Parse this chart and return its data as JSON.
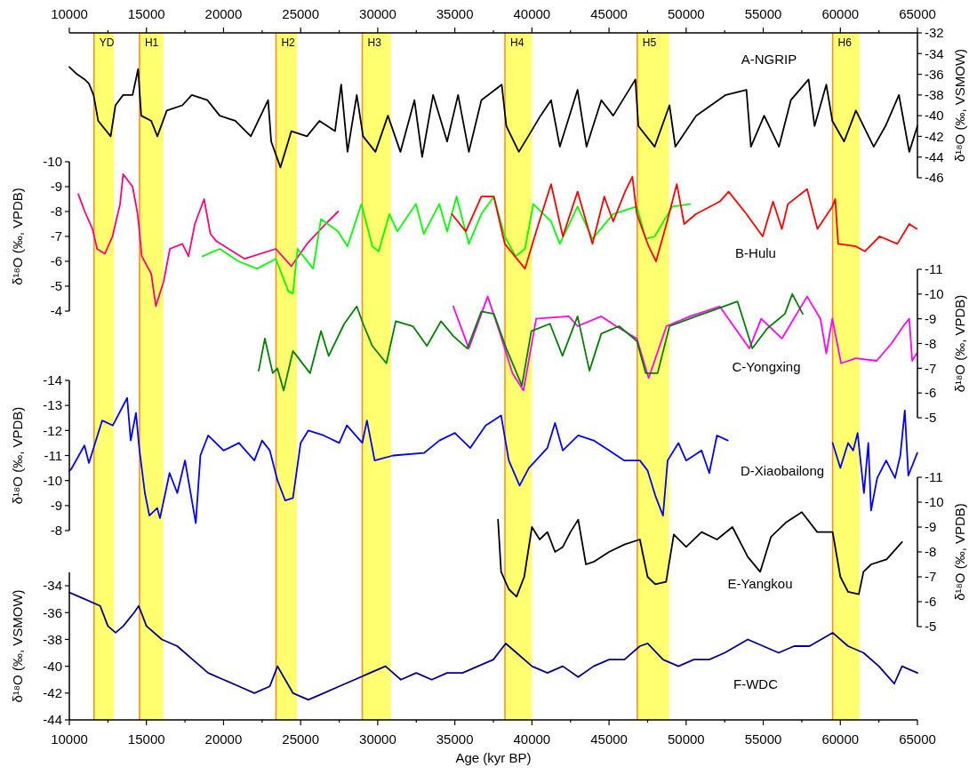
{
  "chart_data": [
    {
      "type": "line",
      "xlim": [
        10000,
        65000
      ],
      "xticks": [
        10000,
        {
          "value": 12500,
          "label": null
        },
        15000,
        {
          "value": 17500,
          "label": null
        },
        20000,
        {
          "value": 22500,
          "label": null
        },
        25000,
        {
          "value": 27500,
          "label": null
        },
        30000,
        {
          "value": 32500,
          "label": null
        },
        35000,
        {
          "value": 37500,
          "label": null
        },
        40000,
        {
          "value": 42500,
          "label": null
        },
        45000,
        {
          "value": 47500,
          "label": null
        },
        50000,
        {
          "value": 52500,
          "label": null
        },
        55000,
        {
          "value": 57500,
          "label": null
        },
        60000,
        {
          "value": 62500,
          "label": null
        },
        65000
      ],
      "ylim": [
        -46,
        -32
      ],
      "yticks": [
        -32,
        -34,
        -36,
        -38,
        -40,
        -42,
        -44,
        -46
      ],
      "ylabel": "δ¹⁸O (‰, VSMOW)",
      "annotations": [
        "A-NGRIP"
      ],
      "ref_lines": [
        {
          "axis": "x",
          "value": 11600,
          "color": "#ff8c1a"
        },
        {
          "axis": "x",
          "value": 14550,
          "color": "#ff8c1a"
        },
        {
          "axis": "x",
          "value": 23400,
          "color": "#ff8c1a"
        },
        {
          "axis": "x",
          "value": 29000,
          "color": "#ff8c1a"
        },
        {
          "axis": "x",
          "value": 38250,
          "color": "#ff8c1a"
        },
        {
          "axis": "x",
          "value": 46830,
          "color": "#ff8c1a"
        },
        {
          "axis": "x",
          "value": 59500,
          "color": "#ff8c1a"
        }
      ],
      "bands": [
        {
          "axis": "x",
          "from": 11600,
          "to": 12900,
          "label": "YD",
          "color": "#ffff70"
        },
        {
          "axis": "x",
          "from": 14550,
          "to": 16100,
          "label": "H1",
          "color": "#ffff70"
        },
        {
          "axis": "x",
          "from": 23400,
          "to": 24750,
          "label": "H2",
          "color": "#ffff70"
        },
        {
          "axis": "x",
          "from": 29000,
          "to": 30850,
          "label": "H3",
          "color": "#ffff70"
        },
        {
          "axis": "x",
          "from": 38250,
          "to": 40000,
          "label": "H4",
          "color": "#ffff70"
        },
        {
          "axis": "x",
          "from": 46830,
          "to": 48900,
          "label": "H5",
          "color": "#ffff70"
        },
        {
          "axis": "x",
          "from": 59500,
          "to": 61250,
          "label": "H6",
          "color": "#ffff70"
        }
      ],
      "series": [
        {
          "color": "#000000",
          "x": [
            10000,
            10500,
            11000,
            11270,
            11570,
            11870,
            12680,
            12990,
            13490,
            14100,
            14460,
            14660,
            15310,
            15710,
            16320,
            17330,
            17940,
            18950,
            19750,
            20760,
            21770,
            22890,
            23090,
            23690,
            24400,
            25410,
            26220,
            27230,
            27630,
            28040,
            28640,
            29050,
            29850,
            30660,
            31470,
            32380,
            32880,
            33590,
            34500,
            35210,
            35910,
            36720,
            38040,
            38340,
            39150,
            39960,
            40560,
            41240,
            41810,
            42960,
            43540,
            44500,
            45270,
            46710,
            46900,
            47960,
            48920,
            49300,
            50650,
            52570,
            53910,
            54200,
            55060,
            56020,
            56790,
            57940,
            58330,
            59090,
            59480,
            60245,
            61010,
            62165,
            62930,
            63800,
            64470,
            65000
          ],
          "values": [
            -35.3,
            -36,
            -36.5,
            -36.9,
            -38,
            -40.5,
            -42,
            -39,
            -38,
            -38,
            -35.5,
            -40,
            -40.5,
            -42,
            -39.5,
            -39,
            -38,
            -38.5,
            -40,
            -40.5,
            -42,
            -38.5,
            -42.5,
            -45,
            -41.5,
            -42,
            -40.5,
            -41.5,
            -37,
            -43.5,
            -38,
            -42,
            -43.5,
            -40,
            -43.5,
            -38.5,
            -44,
            -38,
            -42.5,
            -38,
            -43.5,
            -38.5,
            -37,
            -41,
            -43.5,
            -41.5,
            -40,
            -38.5,
            -43,
            -37.5,
            -43,
            -38.5,
            -40,
            -36.5,
            -41,
            -43,
            -39,
            -43,
            -40,
            -38,
            -37.5,
            -43,
            -40,
            -43,
            -38.5,
            -36.5,
            -41,
            -37,
            -40.5,
            -42.5,
            -39.5,
            -43,
            -41,
            -38,
            -43.5,
            -41
          ]
        }
      ]
    },
    {
      "type": "line",
      "xlim": [
        10000,
        65000
      ],
      "ylim": [
        -4,
        -10
      ],
      "yticks": [
        -4,
        -5,
        -6,
        -7,
        -8,
        -9,
        -10
      ],
      "ylabel": "δ¹⁸O (‰, VPDB)",
      "annotations": [
        "B-Hulu"
      ],
      "tick_labels": "y",
      "series": [
        {
          "color": "#ff0080",
          "x": [
            10580,
            11000,
            11500,
            11800,
            12300,
            12800,
            13290,
            13490,
            14100,
            14400,
            14500,
            14700,
            15310,
            15610,
            16120,
            16520,
            17330,
            17730,
            18140,
            18740,
            19150,
            19550,
            21370,
            23390,
            24400,
            25410,
            26620,
            27430
          ],
          "values": [
            -8.7,
            -8,
            -7.3,
            -6.5,
            -6.3,
            -7,
            -8.3,
            -9.5,
            -9,
            -8,
            -7.5,
            -6.2,
            -5.5,
            -4.2,
            -5.2,
            -6.5,
            -6.7,
            -6.2,
            -7.5,
            -8.5,
            -7.1,
            -6.8,
            -6.1,
            -6.5,
            -5.8,
            -6.7,
            -7.5,
            -8
          ]
        },
        {
          "color": "#00ff00",
          "x": [
            18640,
            19750,
            20970,
            22180,
            23390,
            24200,
            24500,
            24800,
            25810,
            26320,
            27430,
            28040,
            28940,
            29650,
            30060,
            30760,
            31270,
            32480,
            32990,
            33990,
            34500,
            35110,
            35910,
            36720,
            37530,
            38240,
            38940,
            39550,
            40085,
            41240,
            41810,
            42960,
            43925,
            45270,
            46805,
            47380,
            47960,
            49110,
            50260
          ],
          "values": [
            -6.2,
            -6.5,
            -6,
            -5.7,
            -6.1,
            -4.8,
            -4.7,
            -6.5,
            -5.7,
            -7.7,
            -7.2,
            -6.6,
            -8.3,
            -6.6,
            -6.4,
            -7.9,
            -7.2,
            -8.3,
            -7.1,
            -8.3,
            -7.2,
            -8.6,
            -6.7,
            -7.9,
            -8.6,
            -7,
            -6.2,
            -6.5,
            -8.3,
            -7.6,
            -6.7,
            -8.2,
            -6.9,
            -7.9,
            -8.2,
            -6.9,
            -7,
            -8.2,
            -8.3
          ]
        },
        {
          "color": "#ff0000",
          "x": [
            34800,
            35710,
            36720,
            37530,
            38240,
            39550,
            40275,
            41240,
            42005,
            42960,
            43925,
            44690,
            45270,
            46040,
            46515,
            46805,
            47570,
            48050,
            48725,
            49395,
            49875,
            50645,
            52180,
            52755,
            53910,
            54965,
            55635,
            56210,
            56600,
            57845,
            58515,
            59480,
            59670,
            59860,
            61010,
            61590,
            62550,
            63700,
            64470,
            64950
          ],
          "values": [
            -7.9,
            -7.2,
            -8.6,
            -8.6,
            -6.7,
            -5.7,
            -7.2,
            -9.1,
            -7,
            -8.8,
            -6.7,
            -8.6,
            -7.6,
            -8.8,
            -9.4,
            -7.9,
            -6.6,
            -6,
            -7.5,
            -9.1,
            -7.5,
            -7.9,
            -8.4,
            -8.8,
            -7.9,
            -7,
            -8.4,
            -7.3,
            -8.3,
            -8.9,
            -7.3,
            -8.2,
            -8.5,
            -6.7,
            -6.6,
            -6.4,
            -7,
            -6.7,
            -7.5,
            -7.3
          ]
        }
      ]
    },
    {
      "type": "line",
      "xlim": [
        10000,
        65000
      ],
      "ylim": [
        -5,
        -11
      ],
      "yticks": [
        -5,
        -6,
        -7,
        -8,
        -9,
        -10,
        -11
      ],
      "ylabel": "δ¹⁸O (‰, VPDB)",
      "annotations": [
        "C-Yongxing"
      ],
      "tick_labels": "y",
      "series": [
        {
          "color": "#ff00ff",
          "x": [
            34900,
            35910,
            37130,
            37935,
            38740,
            39450,
            40275,
            42390,
            42960,
            44500,
            45460,
            46805,
            47570,
            48725,
            50260,
            52180,
            54100,
            54870,
            56210,
            57845,
            58710,
            59090,
            59480,
            60050,
            61010,
            62355,
            63315,
            64085,
            64470,
            64660,
            64950
          ],
          "values": [
            -9.5,
            -7.8,
            -9.9,
            -8.4,
            -6.8,
            -6.1,
            -9,
            -9.1,
            -8.7,
            -9.1,
            -8.7,
            -8.2,
            -6.6,
            -8.7,
            -9.1,
            -9.5,
            -7.8,
            -9,
            -8.2,
            -9.9,
            -9,
            -7.6,
            -9,
            -7.2,
            -7.4,
            -7.3,
            -8,
            -8.7,
            -9,
            -7.3,
            -7.6
          ]
        },
        {
          "color": "#008000",
          "x": [
            22280,
            22680,
            23190,
            23490,
            23900,
            24500,
            25610,
            26320,
            26820,
            27830,
            28640,
            29050,
            29650,
            30560,
            31170,
            32280,
            33190,
            34100,
            34900,
            35810,
            36720,
            37530,
            38340,
            39350,
            39960,
            41170,
            41980,
            42960,
            43730,
            44500,
            45650,
            46805,
            47380,
            48150,
            48920,
            50645,
            51990,
            53335,
            54290,
            55250,
            56405,
            56885,
            57560
          ],
          "values": [
            -6.9,
            -8.2,
            -6.8,
            -7,
            -6.1,
            -7.7,
            -6.8,
            -8.5,
            -7.5,
            -8.8,
            -9.5,
            -8.8,
            -7.9,
            -7.2,
            -8.9,
            -8.7,
            -7.9,
            -8.9,
            -8.3,
            -7.8,
            -9.3,
            -9.2,
            -7.8,
            -6.3,
            -8.5,
            -8.8,
            -7.5,
            -9.1,
            -6.9,
            -8.4,
            -8.7,
            -8.1,
            -6.8,
            -6.8,
            -8.7,
            -9.1,
            -9.4,
            -9.7,
            -7.8,
            -8.6,
            -9.2,
            -10,
            -9.2
          ]
        }
      ]
    },
    {
      "type": "line",
      "xlim": [
        10000,
        65000
      ],
      "ylim": [
        -8,
        -14
      ],
      "yticks": [
        -8,
        -9,
        -10,
        -11,
        -12,
        -13,
        -14
      ],
      "ylabel": "δ¹⁸O (‰, VPDB)",
      "annotations": [
        "D-Xiaobailong"
      ],
      "tick_labels": "y",
      "series": [
        {
          "color": "#0000ff",
          "x": [
            10000,
            10115,
            10980,
            11270,
            12130,
            12820,
            13750,
            13980,
            14320,
            14550,
            14900,
            15190,
            15700,
            15880,
            16500,
            17000,
            17500,
            18200,
            18500,
            19000,
            20000,
            21000,
            22000,
            22500,
            23000,
            23500,
            24000,
            24500,
            25000,
            25500,
            26500,
            27500,
            28000,
            29000,
            29300,
            29800,
            31000,
            33000,
            34000,
            35000,
            36000,
            37000,
            38000,
            38500,
            39200,
            39800,
            41000,
            41500,
            42000,
            43000,
            44000,
            45000,
            46000,
            47000,
            47500,
            48000,
            48500,
            48800,
            49500,
            50000,
            51000,
            51500,
            52000,
            52700,
            56000,
            59500,
            60000,
            60500,
            60835,
            61120,
            61530,
            61815,
            61990,
            62390,
            62970,
            63550,
            63890,
            64180,
            64410,
            64990
          ],
          "values": [
            -10.4,
            -10.45,
            -11.4,
            -10.7,
            -12.4,
            -12.2,
            -13.3,
            -11.6,
            -12.7,
            -11.2,
            -9.5,
            -8.6,
            -8.9,
            -8.5,
            -10.3,
            -9.5,
            -10.8,
            -8.3,
            -11,
            -11.8,
            -11.2,
            -11.5,
            -10.8,
            -11.6,
            -11.2,
            -10,
            -9.2,
            -9.3,
            -11.5,
            -12,
            -11.8,
            -11.5,
            -12.2,
            -11.5,
            -12.4,
            -10.8,
            -11,
            -11.1,
            -11.6,
            -11.9,
            -11.3,
            -12.2,
            -12.6,
            -10.8,
            -9.8,
            -10.5,
            -11.3,
            -12.3,
            -11.2,
            -11.8,
            -11.6,
            -11.2,
            -10.8,
            -10.8,
            -10.4,
            -9.4,
            -8.6,
            -10.8,
            -11.5,
            -10.8,
            -11.2,
            -10.3,
            -11.8,
            -11.6,
            null,
            -11.5,
            -10.5,
            -11.5,
            -11.2,
            -11.9,
            -9.5,
            -11.5,
            -8.8,
            -10.1,
            -10.8,
            -10.1,
            -11,
            -12.8,
            -10.2,
            -11.1
          ]
        }
      ]
    },
    {
      "type": "line",
      "xlim": [
        10000,
        65000
      ],
      "ylim": [
        -5,
        -11
      ],
      "yticks": [
        -5,
        -6,
        -7,
        -8,
        -9,
        -10,
        -11
      ],
      "ylabel": "δ¹⁸O (‰, VPDB)",
      "annotations": [
        "E-Yangkou"
      ],
      "tick_labels": "y",
      "series": [
        {
          "color": "#000000",
          "x": [
            37800,
            38000,
            38500,
            39000,
            39500,
            40000,
            40500,
            41000,
            41500,
            42000,
            42500,
            43000,
            43500,
            44000,
            45000,
            46000,
            47000,
            47500,
            48000,
            48700,
            49200,
            50000,
            51000,
            52000,
            53000,
            54000,
            54800,
            55500,
            56500,
            57500,
            58500,
            59500,
            60000,
            60500,
            61200,
            61500,
            62000,
            63000,
            64000
          ],
          "values": [
            -9.3,
            -7.2,
            -6.5,
            -6.2,
            -7,
            -9,
            -8.5,
            -8.8,
            -8,
            -8.2,
            -8.8,
            -9.3,
            -7.5,
            -7.6,
            -8,
            -8.3,
            -8.5,
            -7,
            -6.7,
            -6.8,
            -8.7,
            -8.2,
            -8.8,
            -8.5,
            -9,
            -7.8,
            -7.2,
            -8.6,
            -9.2,
            -9.6,
            -8.8,
            -8.8,
            -7,
            -6.4,
            -6.3,
            -7.2,
            -7.5,
            -7.7,
            -8.4
          ]
        }
      ]
    },
    {
      "type": "line",
      "xlim": [
        10000,
        65000
      ],
      "xticks": [
        10000,
        {
          "value": 12500,
          "label": null
        },
        15000,
        {
          "value": 17500,
          "label": null
        },
        20000,
        {
          "value": 22500,
          "label": null
        },
        25000,
        {
          "value": 27500,
          "label": null
        },
        30000,
        {
          "value": 32500,
          "label": null
        },
        35000,
        {
          "value": 37500,
          "label": null
        },
        40000,
        {
          "value": 42500,
          "label": null
        },
        45000,
        {
          "value": 47500,
          "label": null
        },
        50000,
        {
          "value": 52500,
          "label": null
        },
        55000,
        {
          "value": 57500,
          "label": null
        },
        60000,
        {
          "value": 62500,
          "label": null
        },
        65000
      ],
      "xlabel": "Age (kyr BP)",
      "ylim": [
        -44,
        -33
      ],
      "yticks": [
        -34,
        -36,
        -38,
        -40,
        -42,
        -44
      ],
      "ylabel": "δ¹⁸O (‰, VSMOW)",
      "annotations": [
        "F-WDC"
      ],
      "series": [
        {
          "color": "#00008b",
          "x": [
            10000,
            11000,
            12000,
            12500,
            13000,
            13500,
            14200,
            14500,
            15000,
            16000,
            17000,
            18000,
            19000,
            20000,
            21000,
            22000,
            23000,
            23500,
            24500,
            25500,
            26500,
            27500,
            28500,
            29500,
            30500,
            31500,
            32500,
            33500,
            34500,
            35500,
            36500,
            37500,
            38300,
            39000,
            40000,
            41000,
            42000,
            43000,
            44000,
            45000,
            46000,
            47000,
            47500,
            48500,
            49500,
            50500,
            51500,
            52500,
            54000,
            55000,
            56000,
            57000,
            58000,
            59500,
            60500,
            61500,
            62500,
            63500,
            64000,
            65000
          ],
          "values": [
            -34.5,
            -35,
            -35.5,
            -37,
            -37.5,
            -37,
            -36,
            -35.5,
            -37,
            -38,
            -38.5,
            -39.5,
            -40.5,
            -41,
            -41.5,
            -42,
            -41.5,
            -40,
            -42,
            -42.5,
            -42,
            -41.5,
            -41,
            -40.5,
            -40,
            -41,
            -40.5,
            -41,
            -40.5,
            -40.5,
            -40,
            -39.5,
            -38.3,
            -39,
            -40,
            -40.5,
            -40,
            -40.8,
            -40,
            -39.5,
            -39.5,
            -38.5,
            -38.3,
            -39.5,
            -40,
            -39.5,
            -39.5,
            -39,
            -38,
            -38.5,
            -39,
            -38.5,
            -38.5,
            -37.5,
            -38.5,
            -39,
            -40,
            -41.3,
            -40,
            -40.5
          ]
        }
      ]
    }
  ]
}
